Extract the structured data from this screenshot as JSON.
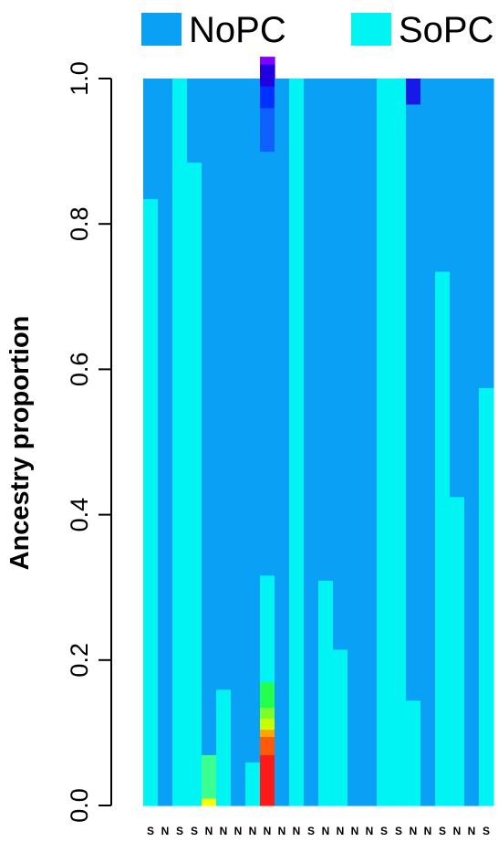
{
  "chart_data": {
    "type": "bar",
    "stacked": true,
    "ylabel": "Ancestry proportion",
    "ylim": [
      0,
      1
    ],
    "yticks": [
      "0.0",
      "0.2",
      "0.4",
      "0.6",
      "0.8",
      "1.0"
    ],
    "legend": {
      "placement": "top",
      "entries": [
        {
          "name": "NoPC",
          "color": "#0aa0f5"
        },
        {
          "name": "SoPC",
          "color": "#00f4f4"
        }
      ]
    },
    "categories": [
      "S",
      "N",
      "S",
      "S",
      "N",
      "N",
      "N",
      "N",
      "N",
      "N",
      "N",
      "S",
      "N",
      "N",
      "N",
      "N",
      "S",
      "S",
      "N",
      "N",
      "S",
      "N",
      "N",
      "S"
    ],
    "colors": {
      "NoPC": "#0aa0f5",
      "SoPC": "#00f4f4",
      "extra": [
        "#ffff00",
        "#3cff90",
        "#ff1a1a",
        "#ff5a0a",
        "#ffa500",
        "#c8ff00",
        "#7cff28",
        "#22ff4c",
        "#1060ff",
        "#0030ff",
        "#2000e0",
        "#8000ff",
        "#1818e8"
      ]
    },
    "bars": [
      {
        "segments": [
          {
            "c": "SoPC",
            "v": 0.835
          },
          {
            "c": "NoPC",
            "v": 0.165
          }
        ]
      },
      {
        "segments": [
          {
            "c": "NoPC",
            "v": 1.0
          }
        ]
      },
      {
        "segments": [
          {
            "c": "SoPC",
            "v": 1.0
          }
        ]
      },
      {
        "segments": [
          {
            "c": "SoPC",
            "v": 0.885
          },
          {
            "c": "NoPC",
            "v": 0.115
          }
        ]
      },
      {
        "segments": [
          {
            "c": "#ffff00",
            "v": 0.01
          },
          {
            "c": "#3cff90",
            "v": 0.06
          },
          {
            "c": "NoPC",
            "v": 0.93
          }
        ]
      },
      {
        "segments": [
          {
            "c": "SoPC",
            "v": 0.16
          },
          {
            "c": "NoPC",
            "v": 0.84
          }
        ]
      },
      {
        "segments": [
          {
            "c": "NoPC",
            "v": 1.0
          }
        ]
      },
      {
        "segments": [
          {
            "c": "SoPC",
            "v": 0.06
          },
          {
            "c": "NoPC",
            "v": 0.94
          }
        ]
      },
      {
        "segments": [
          {
            "c": "#ff1a1a",
            "v": 0.07
          },
          {
            "c": "#ff5a0a",
            "v": 0.025
          },
          {
            "c": "#ffa500",
            "v": 0.01
          },
          {
            "c": "#c8ff00",
            "v": 0.015
          },
          {
            "c": "#7cff28",
            "v": 0.015
          },
          {
            "c": "#22ff4c",
            "v": 0.035
          },
          {
            "c": "SoPC",
            "v": 0.147
          },
          {
            "c": "NoPC",
            "v": 0.583
          },
          {
            "c": "#1060ff",
            "v": 0.06
          },
          {
            "c": "#0030ff",
            "v": 0.03
          },
          {
            "c": "#2000e0",
            "v": 0.03
          },
          {
            "c": "#8000ff",
            "v": 0.01
          }
        ]
      },
      {
        "segments": [
          {
            "c": "NoPC",
            "v": 1.0
          }
        ]
      },
      {
        "segments": [
          {
            "c": "SoPC",
            "v": 1.0
          }
        ]
      },
      {
        "segments": [
          {
            "c": "NoPC",
            "v": 1.0
          }
        ]
      },
      {
        "segments": [
          {
            "c": "SoPC",
            "v": 0.31
          },
          {
            "c": "NoPC",
            "v": 0.69
          }
        ]
      },
      {
        "segments": [
          {
            "c": "SoPC",
            "v": 0.215
          },
          {
            "c": "NoPC",
            "v": 0.785
          }
        ]
      },
      {
        "segments": [
          {
            "c": "NoPC",
            "v": 1.0
          }
        ]
      },
      {
        "segments": [
          {
            "c": "NoPC",
            "v": 1.0
          }
        ]
      },
      {
        "segments": [
          {
            "c": "SoPC",
            "v": 1.0
          }
        ]
      },
      {
        "segments": [
          {
            "c": "SoPC",
            "v": 1.0
          }
        ]
      },
      {
        "segments": [
          {
            "c": "SoPC",
            "v": 0.145
          },
          {
            "c": "NoPC",
            "v": 0.82
          },
          {
            "c": "#1818e8",
            "v": 0.035
          }
        ]
      },
      {
        "segments": [
          {
            "c": "NoPC",
            "v": 1.0
          }
        ]
      },
      {
        "segments": [
          {
            "c": "SoPC",
            "v": 0.735
          },
          {
            "c": "NoPC",
            "v": 0.265
          }
        ]
      },
      {
        "segments": [
          {
            "c": "SoPC",
            "v": 0.425
          },
          {
            "c": "NoPC",
            "v": 0.575
          }
        ]
      },
      {
        "segments": [
          {
            "c": "NoPC",
            "v": 1.0
          }
        ]
      },
      {
        "segments": [
          {
            "c": "SoPC",
            "v": 0.575
          },
          {
            "c": "NoPC",
            "v": 0.425
          }
        ]
      }
    ]
  }
}
